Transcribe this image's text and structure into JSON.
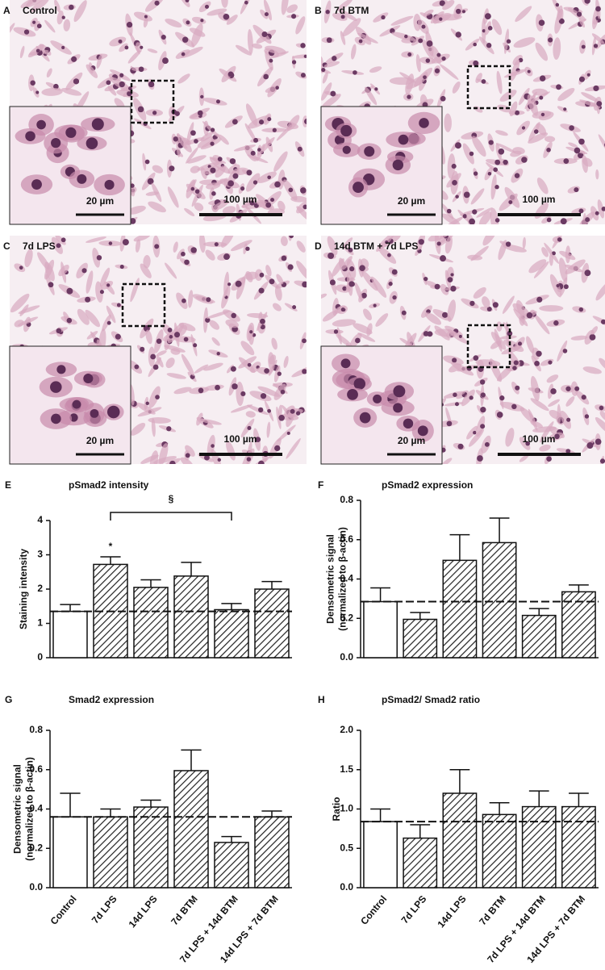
{
  "micrographs": [
    {
      "letter": "A",
      "label": "Control",
      "inset_scale": "20 µm",
      "scale": "100 µm"
    },
    {
      "letter": "B",
      "label": "7d BTM",
      "inset_scale": "20 µm",
      "scale": "100 µm"
    },
    {
      "letter": "C",
      "label": "7d LPS",
      "inset_scale": "20 µm",
      "scale": "100 µm"
    },
    {
      "letter": "D",
      "label": "14d BTM + 7d LPS",
      "inset_scale": "20 µm",
      "scale": "100 µm"
    }
  ],
  "chart_data": [
    {
      "type": "bar",
      "letter": "E",
      "title": "pSmad2 intensity",
      "ylabel": [
        "Staining intensity"
      ],
      "categories": [
        null,
        null,
        null,
        null,
        null,
        null
      ],
      "values": [
        1.35,
        2.72,
        2.05,
        2.38,
        1.4,
        2.0
      ],
      "errors": [
        0.2,
        0.22,
        0.22,
        0.4,
        0.18,
        0.22
      ],
      "patterns": [
        "solid",
        "hatch",
        "hatch",
        "hatch",
        "hatch",
        "hatch"
      ],
      "ylim": [
        0,
        4
      ],
      "yticks": [
        0,
        1,
        2,
        3,
        4
      ],
      "annotations": [
        "*",
        "§"
      ]
    },
    {
      "type": "bar",
      "letter": "F",
      "title": "pSmad2 expression",
      "ylabel": [
        "Densometric signal",
        "(normalized to β-actin)"
      ],
      "categories": [
        null,
        null,
        null,
        null,
        null,
        null
      ],
      "values": [
        0.285,
        0.195,
        0.495,
        0.585,
        0.215,
        0.335
      ],
      "errors": [
        0.07,
        0.035,
        0.13,
        0.125,
        0.035,
        0.035
      ],
      "patterns": [
        "solid",
        "hatch",
        "hatch",
        "hatch",
        "hatch",
        "hatch"
      ],
      "ylim": [
        0,
        0.8
      ],
      "yticks": [
        {
          "value": 0,
          "label": "0.0"
        },
        0.2,
        0.4,
        0.6,
        0.8
      ]
    },
    {
      "type": "bar",
      "letter": "G",
      "title": "Smad2 expression",
      "ylabel": [
        "Densometric signal",
        "(normalized to β-actin)"
      ],
      "categories": [
        "Control",
        "7d LPS",
        "14d LPS",
        "7d BTM",
        "7d LPS + 14d BTM",
        "14d LPS + 7d BTM"
      ],
      "values": [
        0.36,
        0.36,
        0.41,
        0.595,
        0.23,
        0.36
      ],
      "errors": [
        0.12,
        0.04,
        0.035,
        0.105,
        0.03,
        0.03
      ],
      "patterns": [
        "solid",
        "hatch",
        "hatch",
        "hatch",
        "hatch",
        "hatch"
      ],
      "ylim": [
        0,
        0.8
      ],
      "yticks": [
        {
          "value": 0,
          "label": "0.0"
        },
        0.2,
        0.4,
        0.6,
        0.8
      ]
    },
    {
      "type": "bar",
      "letter": "H",
      "title": "pSmad2/ Smad2 ratio",
      "ylabel": [
        "Ratio"
      ],
      "categories": [
        "Control",
        "7d LPS",
        "14d LPS",
        "7d BTM",
        "7d LPS + 14d BTM",
        "14d LPS + 7d BTM"
      ],
      "values": [
        0.84,
        0.63,
        1.2,
        0.93,
        1.03,
        1.03
      ],
      "errors": [
        0.16,
        0.17,
        0.3,
        0.15,
        0.2,
        0.17
      ],
      "patterns": [
        "solid",
        "hatch",
        "hatch",
        "hatch",
        "hatch",
        "hatch"
      ],
      "ylim": [
        0,
        2
      ],
      "yticks": [
        {
          "value": 0,
          "label": "0.0"
        },
        0.5,
        {
          "value": 1,
          "label": "1.0"
        },
        1.5,
        {
          "value": 2,
          "label": "2.0"
        }
      ]
    }
  ]
}
